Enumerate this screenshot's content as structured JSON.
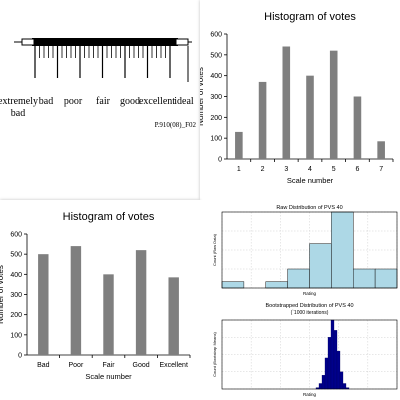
{
  "scale_panel": {
    "labels": [
      "extremely bad",
      "bad",
      "poor",
      "fair",
      "good",
      "excellent",
      "ideal"
    ],
    "code": "P.910(08)_F02"
  },
  "chart_data": [
    {
      "type": "bar",
      "title": "Histogram of votes",
      "xlabel": "Scale number",
      "ylabel": "Number of votes",
      "categories": [
        "1",
        "2",
        "3",
        "4",
        "5",
        "6",
        "7"
      ],
      "values": [
        130,
        370,
        540,
        400,
        520,
        300,
        85
      ],
      "ylim": [
        0,
        600
      ],
      "yticks": [
        0,
        100,
        200,
        300,
        400,
        500,
        600
      ],
      "bar_color": "#7f7f7f",
      "grid": false
    },
    {
      "type": "bar",
      "title": "Histogram of votes",
      "xlabel": "Scale number",
      "ylabel": "Number of votes",
      "categories": [
        "Bad",
        "Poor",
        "Fair",
        "Good",
        "Excellent"
      ],
      "values": [
        500,
        540,
        400,
        520,
        385
      ],
      "ylim": [
        0,
        600
      ],
      "yticks": [
        0,
        100,
        200,
        300,
        400,
        500,
        600
      ],
      "bar_color": "#7f7f7f",
      "grid": false
    },
    {
      "type": "bar",
      "title": "Raw Distribution of PVS 40",
      "xlabel": "Rating",
      "ylabel": "Count (Raw Data)",
      "categories": [
        "1",
        "2",
        "3",
        "4",
        "5",
        "6",
        "7",
        "8"
      ],
      "values": [
        1,
        0,
        1,
        3,
        7,
        12,
        3,
        3
      ],
      "ylim": [
        0,
        12
      ],
      "bar_color": "#add8e6",
      "grid": true
    },
    {
      "type": "bar",
      "title": "Bootstrapped Distribution of PVS 40",
      "subtitle": "(`1000 iterations)",
      "xlabel": "Rating",
      "ylabel": "Count (Bootstrap Means)",
      "categories": [
        "1",
        "2",
        "3",
        "4",
        "5",
        "6",
        "7",
        "8",
        "9",
        "10",
        "11"
      ],
      "values": [
        2,
        8,
        20,
        45,
        75,
        100,
        85,
        55,
        25,
        8,
        2
      ],
      "ylim": [
        0,
        100
      ],
      "bar_color": "#00008b",
      "grid": true
    }
  ]
}
